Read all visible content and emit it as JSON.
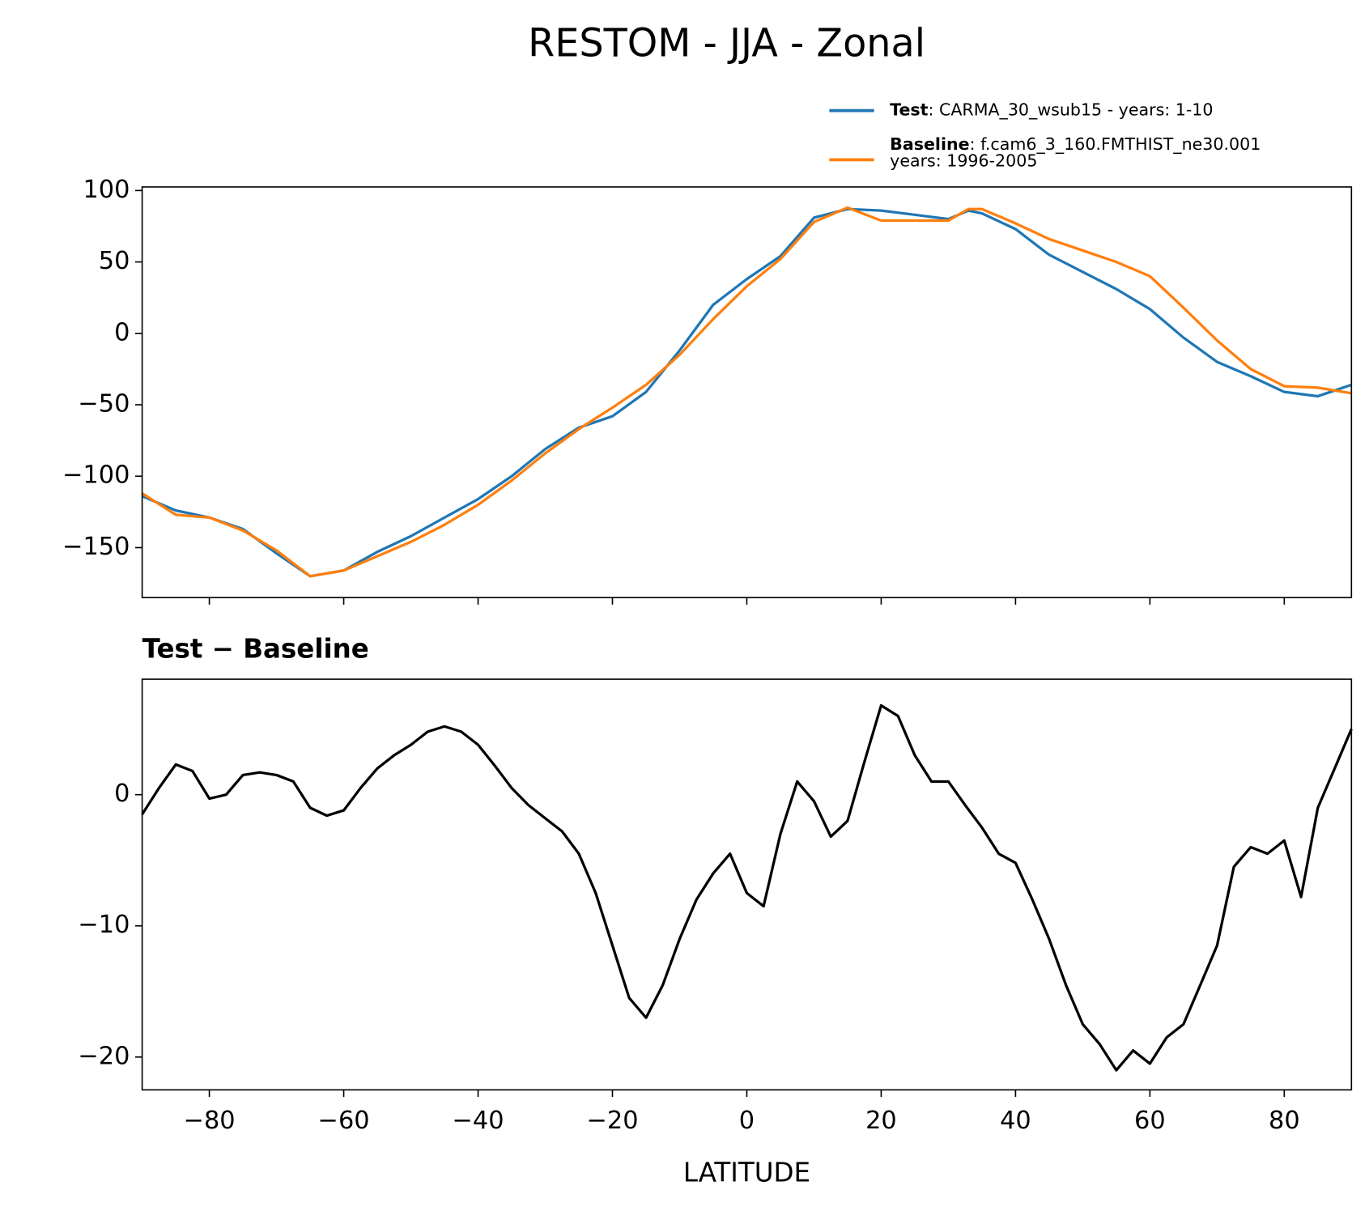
{
  "chart_data": [
    {
      "type": "line",
      "title": "RESTOM - JJA - Zonal",
      "x": [
        -90,
        -85,
        -80,
        -75,
        -70,
        -65,
        -60,
        -55,
        -50,
        -45,
        -40,
        -35,
        -30,
        -25,
        -20,
        -15,
        -10,
        -5,
        0,
        5,
        10,
        15,
        20,
        25,
        30,
        33,
        35,
        40,
        45,
        50,
        55,
        60,
        65,
        70,
        75,
        80,
        85,
        90
      ],
      "series": [
        {
          "name": "Test",
          "legend_text": [
            ": CARMA_30_wsub15 - years: 1-10"
          ],
          "color": "#1f77b4",
          "values": [
            -114,
            -124,
            -129,
            -137,
            -154,
            -170,
            -166,
            -153,
            -142,
            -129,
            -116,
            -100,
            -81,
            -66,
            -58,
            -41,
            -12,
            20,
            38,
            54,
            81,
            87,
            86,
            83,
            80,
            86,
            84,
            73,
            55,
            43,
            31,
            17,
            -3,
            -20,
            -30,
            -41,
            -44,
            -36
          ]
        },
        {
          "name": "Baseline",
          "legend_text": [
            ": f.cam6_3_160.FMTHIST_ne30.001",
            "years: 1996-2005"
          ],
          "color": "#ff7f0e",
          "values": [
            -112,
            -127,
            -129,
            -138,
            -152,
            -170,
            -166,
            -156,
            -146,
            -134,
            -120,
            -103,
            -84,
            -67,
            -52,
            -36,
            -15,
            10,
            33,
            52,
            78,
            88,
            79,
            79,
            79,
            87,
            87,
            77,
            66,
            58,
            50,
            40,
            18,
            -5,
            -25,
            -37,
            -38,
            -42
          ]
        }
      ],
      "xlim": [
        -90,
        90
      ],
      "ylim": [
        -185,
        102.5
      ],
      "yticks": [
        {
          "value": -150,
          "label": "−150"
        },
        {
          "value": -100,
          "label": "−100"
        },
        {
          "value": -50,
          "label": "−50"
        },
        0,
        50,
        100
      ],
      "legend": "upper right"
    },
    {
      "type": "line",
      "title": "Test − Baseline",
      "xlabel": "LATITUDE",
      "x": [
        -90,
        -87.5,
        -85,
        -82.5,
        -80,
        -77.5,
        -75,
        -72.5,
        -70,
        -67.5,
        -65,
        -62.5,
        -60,
        -57.5,
        -55,
        -52.5,
        -50,
        -47.5,
        -45,
        -42.5,
        -40,
        -37.5,
        -35,
        -32.5,
        -30,
        -27.5,
        -25,
        -22.5,
        -20,
        -17.5,
        -15,
        -12.5,
        -10,
        -7.5,
        -5,
        -2.5,
        0,
        2.5,
        5,
        7.5,
        10,
        12.5,
        15,
        17.5,
        20,
        22.5,
        25,
        27.5,
        30,
        32.5,
        35,
        37.5,
        40,
        42.5,
        45,
        47.5,
        50,
        52.5,
        55,
        57.5,
        60,
        62.5,
        65,
        67.5,
        70,
        72.5,
        75,
        77.5,
        80,
        82.5,
        85,
        87.5,
        90
      ],
      "series": [
        {
          "color": "#000000",
          "values": [
            -1.5,
            0.5,
            2.3,
            1.8,
            -0.3,
            0,
            1.5,
            1.7,
            1.5,
            1,
            -1,
            -1.6,
            -1.2,
            0.5,
            2,
            3,
            3.8,
            4.8,
            5.2,
            4.8,
            3.8,
            2.2,
            0.5,
            -0.8,
            -1.8,
            -2.8,
            -4.5,
            -7.5,
            -11.5,
            -15.5,
            -17,
            -14.5,
            -11,
            -8,
            -6,
            -4.5,
            -7.5,
            -8.5,
            -3,
            1,
            -0.5,
            -3.2,
            -2,
            2.5,
            6.8,
            6,
            3,
            1,
            1,
            -0.8,
            -2.5,
            -4.5,
            -5.2,
            -8,
            -11,
            -14.5,
            -17.5,
            -19,
            -21,
            -19.5,
            -20.5,
            -18.5,
            -17.5,
            -14.5,
            -11.5,
            -5.5,
            -4,
            -4.5,
            -3.5,
            -7.8,
            -1,
            2,
            5
          ]
        }
      ],
      "xlim": [
        -90,
        90
      ],
      "ylim": [
        -22.5,
        8.8
      ],
      "xticks": [
        {
          "value": -80,
          "label": "−80"
        },
        {
          "value": -60,
          "label": "−60"
        },
        {
          "value": -40,
          "label": "−40"
        },
        {
          "value": -20,
          "label": "−20"
        },
        0,
        20,
        40,
        60,
        80
      ],
      "yticks": [
        {
          "value": -20,
          "label": "−20"
        },
        {
          "value": -10,
          "label": "−10"
        },
        0
      ]
    }
  ]
}
